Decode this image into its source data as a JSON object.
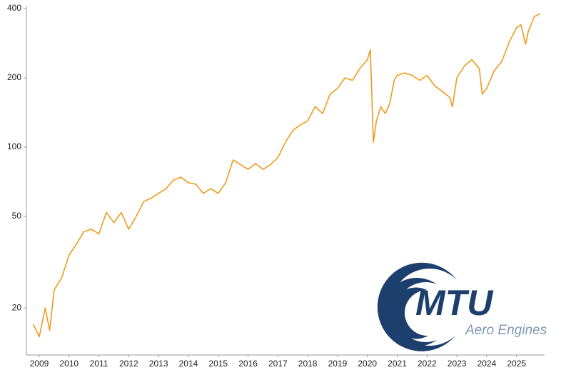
{
  "chart_data": {
    "type": "line",
    "log_scale": true,
    "color": "#EE9B1C",
    "x": [
      2008.8,
      2009.0,
      2009.2,
      2009.35,
      2009.5,
      2009.75,
      2010.0,
      2010.25,
      2010.5,
      2010.75,
      2011.0,
      2011.25,
      2011.5,
      2011.75,
      2012.0,
      2012.25,
      2012.5,
      2012.75,
      2013.0,
      2013.25,
      2013.5,
      2013.75,
      2014.0,
      2014.25,
      2014.5,
      2014.75,
      2015.0,
      2015.25,
      2015.5,
      2015.75,
      2016.0,
      2016.25,
      2016.5,
      2016.75,
      2017.0,
      2017.25,
      2017.5,
      2017.75,
      2018.0,
      2018.25,
      2018.5,
      2018.75,
      2019.0,
      2019.25,
      2019.5,
      2019.75,
      2020.0,
      2020.1,
      2020.2,
      2020.3,
      2020.45,
      2020.6,
      2020.75,
      2020.9,
      2021.0,
      2021.25,
      2021.5,
      2021.75,
      2022.0,
      2022.25,
      2022.5,
      2022.75,
      2022.85,
      2023.0,
      2023.25,
      2023.5,
      2023.75,
      2023.85,
      2024.0,
      2024.25,
      2024.5,
      2024.75,
      2025.0,
      2025.15,
      2025.3,
      2025.4,
      2025.6,
      2025.8
    ],
    "values": [
      17,
      15,
      20,
      16,
      24,
      27,
      34,
      38,
      43,
      44,
      42,
      52,
      47,
      52,
      44,
      50,
      58,
      60,
      63,
      66,
      72,
      74,
      70,
      69,
      63,
      66,
      63,
      70,
      88,
      84,
      80,
      85,
      80,
      84,
      90,
      105,
      118,
      125,
      130,
      150,
      140,
      170,
      180,
      200,
      195,
      220,
      240,
      265,
      105,
      130,
      150,
      140,
      155,
      195,
      205,
      210,
      205,
      195,
      205,
      185,
      175,
      165,
      150,
      200,
      225,
      240,
      220,
      170,
      180,
      215,
      235,
      285,
      330,
      340,
      280,
      320,
      370,
      380
    ],
    "xlim": [
      2008.57,
      2025.94
    ],
    "xticks": [
      2009,
      2010,
      2011,
      2012,
      2013,
      2014,
      2015,
      2016,
      2017,
      2018,
      2019,
      2020,
      2021,
      2022,
      2023,
      2024,
      2025
    ],
    "ylim": [
      12.5,
      400
    ],
    "yticks": [
      20,
      50,
      100,
      200,
      400
    ],
    "logo_text": "MTU",
    "logo_subtext": "Aero Engines"
  }
}
